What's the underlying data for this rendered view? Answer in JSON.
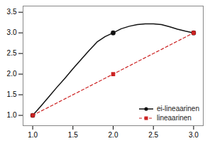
{
  "chart_data": {
    "type": "line",
    "series": [
      {
        "name": "ei-lineaarinen",
        "color": "#111111",
        "line_style": "solid",
        "marker": "circle",
        "x": [
          1.0,
          1.1,
          1.2,
          1.3,
          1.4,
          1.5,
          1.6,
          1.7,
          1.8,
          1.9,
          2.0,
          2.1,
          2.2,
          2.3,
          2.4,
          2.5,
          2.6,
          2.7,
          2.8,
          2.9,
          3.0
        ],
        "values": [
          1.0,
          1.22,
          1.45,
          1.68,
          1.9,
          2.13,
          2.35,
          2.57,
          2.78,
          2.91,
          3.0,
          3.1,
          3.16,
          3.2,
          3.22,
          3.22,
          3.2,
          3.15,
          3.09,
          3.04,
          3.0
        ],
        "markers": {
          "x": [
            1.0,
            2.0,
            3.0
          ],
          "values": [
            1.0,
            3.0,
            3.0
          ]
        }
      },
      {
        "name": "lineaarinen",
        "color": "#cc2222",
        "line_style": "dashed",
        "marker": "square",
        "x": [
          1.0,
          2.0,
          3.0
        ],
        "values": [
          1.0,
          2.0,
          3.0
        ]
      }
    ],
    "xlim": [
      0.88,
      3.12
    ],
    "ylim": [
      0.75,
      3.65
    ],
    "xticks": [
      {
        "value": 1.0,
        "label": "1.0"
      },
      1.5,
      {
        "value": 2.0,
        "label": "2.0"
      },
      2.5,
      {
        "value": 3.0,
        "label": "3.0"
      }
    ],
    "yticks": [
      {
        "value": 1.0,
        "label": "1.0"
      },
      1.5,
      {
        "value": 2.0,
        "label": "2.0"
      },
      2.5,
      {
        "value": 3.0,
        "label": "3.0"
      },
      3.5
    ],
    "grid": false,
    "legend": "lower right"
  }
}
